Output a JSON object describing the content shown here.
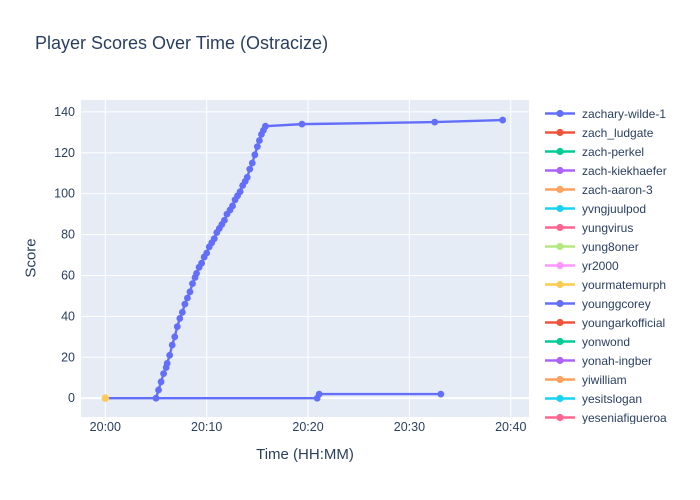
{
  "chart_data": {
    "type": "line",
    "title": "Player Scores Over Time (Ostracize)",
    "xlabel": "Time (HH:MM)",
    "ylabel": "Score",
    "x_unit": "minutes after 20:00",
    "x_range": [
      -2.4,
      41.8
    ],
    "y_range": [
      -9.2,
      145.8
    ],
    "grid": true,
    "legend_position": "right",
    "colors": {
      "plot_bg": "#E5ECF6",
      "grid": "#FFFFFF",
      "text": "#2A3F5F",
      "paper_bg": "#FFFFFF"
    },
    "x_ticks": [
      {
        "value": 0,
        "label": "20:00"
      },
      {
        "value": 10,
        "label": "20:10"
      },
      {
        "value": 20,
        "label": "20:20"
      },
      {
        "value": 30,
        "label": "20:30"
      },
      {
        "value": 40,
        "label": "20:40"
      }
    ],
    "y_ticks": [
      {
        "value": 0,
        "label": "0"
      },
      {
        "value": 20,
        "label": "20"
      },
      {
        "value": 40,
        "label": "40"
      },
      {
        "value": 60,
        "label": "60"
      },
      {
        "value": 80,
        "label": "80"
      },
      {
        "value": 100,
        "label": "100"
      },
      {
        "value": 120,
        "label": "120"
      },
      {
        "value": 140,
        "label": "140"
      }
    ],
    "series": [
      {
        "name": "zachary-wilde-1",
        "color": "#636EFA",
        "mode": "lines+markers",
        "line_width": 2.4,
        "marker_size": 6.8,
        "points": [
          [
            5.0,
            0
          ],
          [
            5.25,
            4
          ],
          [
            5.5,
            8
          ],
          [
            5.75,
            12
          ],
          [
            6.0,
            15
          ],
          [
            6.1,
            17
          ],
          [
            6.35,
            21
          ],
          [
            6.6,
            26
          ],
          [
            6.85,
            30
          ],
          [
            7.1,
            35
          ],
          [
            7.35,
            39
          ],
          [
            7.6,
            42
          ],
          [
            7.85,
            46
          ],
          [
            8.1,
            49
          ],
          [
            8.35,
            52
          ],
          [
            8.6,
            56
          ],
          [
            8.85,
            59
          ],
          [
            9.0,
            61
          ],
          [
            9.25,
            64
          ],
          [
            9.5,
            66
          ],
          [
            9.75,
            69
          ],
          [
            10.0,
            71
          ],
          [
            10.25,
            74
          ],
          [
            10.5,
            76
          ],
          [
            10.75,
            78
          ],
          [
            11.0,
            81
          ],
          [
            11.25,
            83
          ],
          [
            11.5,
            85
          ],
          [
            11.75,
            87
          ],
          [
            12.0,
            90
          ],
          [
            12.3,
            92
          ],
          [
            12.55,
            94
          ],
          [
            12.8,
            97
          ],
          [
            13.05,
            99
          ],
          [
            13.3,
            101
          ],
          [
            13.55,
            104
          ],
          [
            13.8,
            106
          ],
          [
            14.0,
            108
          ],
          [
            14.25,
            112
          ],
          [
            14.5,
            115
          ],
          [
            14.75,
            119
          ],
          [
            15.0,
            123
          ],
          [
            15.2,
            126
          ],
          [
            15.4,
            129
          ],
          [
            15.6,
            131
          ],
          [
            15.8,
            133
          ],
          [
            19.4,
            134
          ],
          [
            32.5,
            135
          ],
          [
            39.2,
            136
          ]
        ]
      },
      {
        "name": "younggcorey",
        "color": "#636EFA",
        "mode": "lines+markers",
        "line_width": 2.4,
        "marker_size": 6.8,
        "points": [
          [
            0,
            0
          ],
          [
            20.9,
            0
          ],
          [
            21.1,
            2
          ],
          [
            33.1,
            2
          ]
        ]
      },
      {
        "name": "yourmatemurph",
        "color": "#FECB52",
        "mode": "markers",
        "line_width": 2.4,
        "marker_size": 7.5,
        "points": [
          [
            0,
            0
          ]
        ]
      }
    ],
    "legend_entries": [
      {
        "label": "zachary-wilde-1",
        "color": "#636EFA"
      },
      {
        "label": "zach_ludgate",
        "color": "#EF553B"
      },
      {
        "label": "zach-perkel",
        "color": "#00CC96"
      },
      {
        "label": "zach-kiekhaefer",
        "color": "#AB63FA"
      },
      {
        "label": "zach-aaron-3",
        "color": "#FFA15A"
      },
      {
        "label": "yvngjuulpod",
        "color": "#19D3F3"
      },
      {
        "label": "yungvirus",
        "color": "#FF6692"
      },
      {
        "label": "yung8oner",
        "color": "#B6E880"
      },
      {
        "label": "yr2000",
        "color": "#FF97FF"
      },
      {
        "label": "yourmatemurph",
        "color": "#FECB52"
      },
      {
        "label": "younggcorey",
        "color": "#636EFA"
      },
      {
        "label": "youngarkofficial",
        "color": "#EF553B"
      },
      {
        "label": "yonwond",
        "color": "#00CC96"
      },
      {
        "label": "yonah-ingber",
        "color": "#AB63FA"
      },
      {
        "label": "yiwilliam",
        "color": "#FFA15A"
      },
      {
        "label": "yesitslogan",
        "color": "#19D3F3"
      },
      {
        "label": "yeseniafigueroa",
        "color": "#FF6692"
      }
    ]
  }
}
